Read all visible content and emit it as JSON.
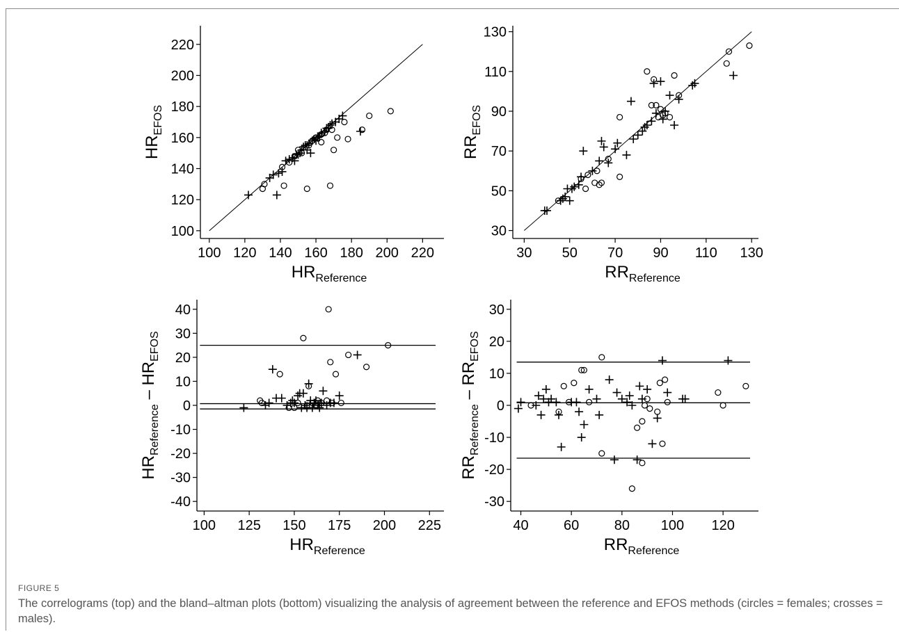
{
  "figure": {
    "label": "FIGURE 5",
    "caption": "The correlograms (top) and the bland–altman plots (bottom) visualizing the analysis of agreement between the reference and EFOS methods (circles = females; crosses = males)."
  },
  "chart_data": [
    {
      "type": "scatter",
      "id": "hr_correlogram",
      "xlabel": {
        "main": "HR",
        "sub": "Reference"
      },
      "ylabel": {
        "main": "HR",
        "sub": "EFOS"
      },
      "xlim": [
        95,
        232
      ],
      "ylim": [
        95,
        232
      ],
      "xticks": [
        100,
        120,
        140,
        160,
        180,
        200,
        220
      ],
      "yticks": [
        100,
        120,
        140,
        160,
        180,
        200,
        220
      ],
      "lines": [
        {
          "kind": "identity",
          "from": 100,
          "to": 220
        }
      ],
      "series": [
        {
          "marker": "circle",
          "points": [
            [
              130,
              127
            ],
            [
              131,
              130
            ],
            [
              142,
              129
            ],
            [
              148,
              148
            ],
            [
              150,
              152
            ],
            [
              152,
              150
            ],
            [
              155,
              127
            ],
            [
              158,
              158
            ],
            [
              160,
              160
            ],
            [
              163,
              162
            ],
            [
              165,
              163
            ],
            [
              166,
              165
            ],
            [
              168,
              129
            ],
            [
              169,
              165
            ],
            [
              170,
              152
            ],
            [
              172,
              160
            ],
            [
              176,
              170
            ],
            [
              178,
              159
            ],
            [
              186,
              165
            ],
            [
              190,
              174
            ],
            [
              202,
              177
            ],
            [
              141,
              141
            ],
            [
              145,
              144
            ],
            [
              156,
              155
            ],
            [
              163,
              157
            ]
          ]
        },
        {
          "marker": "cross",
          "points": [
            [
              122,
              123
            ],
            [
              134,
              134
            ],
            [
              136,
              136
            ],
            [
              138,
              123
            ],
            [
              139,
              137
            ],
            [
              141,
              138
            ],
            [
              143,
              145
            ],
            [
              145,
              146
            ],
            [
              147,
              147
            ],
            [
              149,
              149
            ],
            [
              150,
              149
            ],
            [
              151,
              150
            ],
            [
              152,
              152
            ],
            [
              153,
              154
            ],
            [
              154,
              155
            ],
            [
              155,
              155
            ],
            [
              156,
              156
            ],
            [
              157,
              150
            ],
            [
              158,
              158
            ],
            [
              160,
              158
            ],
            [
              161,
              160
            ],
            [
              163,
              163
            ],
            [
              165,
              164
            ],
            [
              166,
              166
            ],
            [
              168,
              168
            ],
            [
              169,
              169
            ],
            [
              171,
              170
            ],
            [
              173,
              172
            ],
            [
              175,
              174
            ],
            [
              185,
              164
            ],
            [
              148,
              145
            ],
            [
              155,
              152
            ],
            [
              159,
              159
            ],
            [
              162,
              161
            ],
            [
              167,
              166
            ]
          ]
        }
      ]
    },
    {
      "type": "scatter",
      "id": "rr_correlogram",
      "xlabel": {
        "main": "RR",
        "sub": "Reference"
      },
      "ylabel": {
        "main": "RR",
        "sub": "EFOS"
      },
      "xlim": [
        25,
        133
      ],
      "ylim": [
        26,
        133
      ],
      "xticks": [
        30,
        50,
        70,
        90,
        110,
        130
      ],
      "yticks": [
        30,
        50,
        70,
        90,
        110,
        130
      ],
      "lines": [
        {
          "kind": "identity",
          "from": 30,
          "to": 130
        }
      ],
      "series": [
        {
          "marker": "circle",
          "points": [
            [
              45,
              45
            ],
            [
              55,
              56
            ],
            [
              57,
              51
            ],
            [
              58,
              58
            ],
            [
              61,
              54
            ],
            [
              63,
              53
            ],
            [
              64,
              54
            ],
            [
              67,
              66
            ],
            [
              72,
              87
            ],
            [
              72,
              57
            ],
            [
              84,
              110
            ],
            [
              86,
              93
            ],
            [
              87,
              106
            ],
            [
              88,
              93
            ],
            [
              89,
              87
            ],
            [
              90,
              91
            ],
            [
              91,
              88
            ],
            [
              94,
              87
            ],
            [
              96,
              108
            ],
            [
              98,
              98
            ],
            [
              119,
              114
            ],
            [
              120,
              120
            ],
            [
              129,
              123
            ],
            [
              62,
              60
            ],
            [
              92,
              89
            ]
          ]
        },
        {
          "marker": "cross",
          "points": [
            [
              39,
              40
            ],
            [
              40,
              40
            ],
            [
              46,
              45
            ],
            [
              47,
              46
            ],
            [
              48,
              47
            ],
            [
              49,
              51
            ],
            [
              50,
              45
            ],
            [
              51,
              51
            ],
            [
              52,
              52
            ],
            [
              54,
              53
            ],
            [
              55,
              57
            ],
            [
              56,
              70
            ],
            [
              60,
              60
            ],
            [
              63,
              65
            ],
            [
              64,
              75
            ],
            [
              65,
              72
            ],
            [
              67,
              64
            ],
            [
              70,
              71
            ],
            [
              71,
              74
            ],
            [
              75,
              68
            ],
            [
              77,
              95
            ],
            [
              78,
              76
            ],
            [
              80,
              78
            ],
            [
              82,
              80
            ],
            [
              84,
              83
            ],
            [
              86,
              85
            ],
            [
              87,
              104
            ],
            [
              88,
              89
            ],
            [
              90,
              105
            ],
            [
              92,
              90
            ],
            [
              94,
              98
            ],
            [
              96,
              83
            ],
            [
              98,
              96
            ],
            [
              104,
              103
            ],
            [
              105,
              104
            ],
            [
              122,
              108
            ],
            [
              83,
              82
            ],
            [
              91,
              86
            ]
          ]
        }
      ]
    },
    {
      "type": "scatter",
      "id": "hr_bland_altman",
      "xlabel": {
        "main": "HR",
        "sub": "Reference"
      },
      "ylabel": {
        "main": "HR",
        "sub": "Reference",
        "minus": " – ",
        "main2": "HR",
        "sub2": "EFOS"
      },
      "xlim": [
        96,
        233
      ],
      "ylim": [
        -44,
        44
      ],
      "xticks": [
        100,
        125,
        150,
        175,
        200,
        225
      ],
      "yticks": [
        -40,
        -30,
        -20,
        -10,
        0,
        10,
        20,
        30,
        40
      ],
      "hlines": [
        25,
        0.7,
        -1.5
      ],
      "series": [
        {
          "marker": "circle",
          "points": [
            [
              131,
              2
            ],
            [
              132,
              1
            ],
            [
              142,
              13
            ],
            [
              150,
              -1
            ],
            [
              152,
              1
            ],
            [
              155,
              28
            ],
            [
              157,
              0
            ],
            [
              158,
              8
            ],
            [
              160,
              1
            ],
            [
              162,
              0
            ],
            [
              165,
              1
            ],
            [
              168,
              2
            ],
            [
              169,
              40
            ],
            [
              170,
              18
            ],
            [
              173,
              13
            ],
            [
              176,
              1
            ],
            [
              180,
              21
            ],
            [
              190,
              16
            ],
            [
              202,
              25
            ],
            [
              147,
              -1
            ],
            [
              163,
              2
            ],
            [
              171,
              1
            ]
          ]
        },
        {
          "marker": "cross",
          "points": [
            [
              122,
              -1
            ],
            [
              134,
              0
            ],
            [
              136,
              1
            ],
            [
              138,
              15
            ],
            [
              140,
              3
            ],
            [
              143,
              3
            ],
            [
              146,
              0
            ],
            [
              148,
              1
            ],
            [
              150,
              1
            ],
            [
              152,
              4
            ],
            [
              153,
              5
            ],
            [
              155,
              5
            ],
            [
              156,
              0
            ],
            [
              157,
              -1
            ],
            [
              158,
              9
            ],
            [
              159,
              2
            ],
            [
              160,
              -1
            ],
            [
              161,
              1
            ],
            [
              163,
              0
            ],
            [
              164,
              -1
            ],
            [
              165,
              1
            ],
            [
              166,
              6
            ],
            [
              168,
              0
            ],
            [
              170,
              1
            ],
            [
              172,
              1
            ],
            [
              175,
              4
            ],
            [
              185,
              21
            ],
            [
              149,
              2
            ],
            [
              154,
              -1
            ],
            [
              162,
              2
            ]
          ]
        }
      ]
    },
    {
      "type": "scatter",
      "id": "rr_bland_altman",
      "xlabel": {
        "main": "RR",
        "sub": "Reference"
      },
      "ylabel": {
        "main": "RR",
        "sub": "Reference",
        "minus": " – ",
        "main2": "RR",
        "sub2": "EFOS"
      },
      "xlim": [
        36,
        134
      ],
      "ylim": [
        -33,
        33
      ],
      "xticks": [
        40,
        60,
        80,
        100,
        120
      ],
      "yticks": [
        -30,
        -20,
        -10,
        0,
        10,
        20,
        30
      ],
      "hlines": [
        13.5,
        0.8,
        -16.5
      ],
      "series": [
        {
          "marker": "circle",
          "points": [
            [
              44,
              0
            ],
            [
              55,
              -2
            ],
            [
              57,
              6
            ],
            [
              61,
              7
            ],
            [
              64,
              11
            ],
            [
              65,
              11
            ],
            [
              67,
              1
            ],
            [
              72,
              15
            ],
            [
              72,
              -15
            ],
            [
              84,
              -26
            ],
            [
              86,
              -7
            ],
            [
              88,
              -5
            ],
            [
              88,
              -18
            ],
            [
              89,
              0
            ],
            [
              90,
              2
            ],
            [
              91,
              -1
            ],
            [
              94,
              -2
            ],
            [
              95,
              7
            ],
            [
              96,
              -12
            ],
            [
              97,
              8
            ],
            [
              98,
              1
            ],
            [
              118,
              4
            ],
            [
              120,
              0
            ],
            [
              129,
              6
            ],
            [
              59,
              1
            ]
          ]
        },
        {
          "marker": "cross",
          "points": [
            [
              39,
              -1
            ],
            [
              40,
              1
            ],
            [
              46,
              0
            ],
            [
              47,
              3
            ],
            [
              48,
              -3
            ],
            [
              49,
              2
            ],
            [
              50,
              5
            ],
            [
              51,
              1
            ],
            [
              52,
              2
            ],
            [
              54,
              1
            ],
            [
              55,
              -3
            ],
            [
              56,
              -13
            ],
            [
              60,
              1
            ],
            [
              63,
              -2
            ],
            [
              64,
              -10
            ],
            [
              65,
              -6
            ],
            [
              67,
              5
            ],
            [
              70,
              2
            ],
            [
              71,
              -3
            ],
            [
              75,
              8
            ],
            [
              77,
              -17
            ],
            [
              78,
              4
            ],
            [
              80,
              2
            ],
            [
              82,
              1
            ],
            [
              84,
              0
            ],
            [
              86,
              -17
            ],
            [
              87,
              6
            ],
            [
              88,
              2
            ],
            [
              90,
              5
            ],
            [
              92,
              -12
            ],
            [
              94,
              -4
            ],
            [
              96,
              14
            ],
            [
              98,
              4
            ],
            [
              104,
              2
            ],
            [
              105,
              2
            ],
            [
              122,
              14
            ],
            [
              62,
              1
            ],
            [
              83,
              3
            ]
          ]
        }
      ]
    }
  ]
}
